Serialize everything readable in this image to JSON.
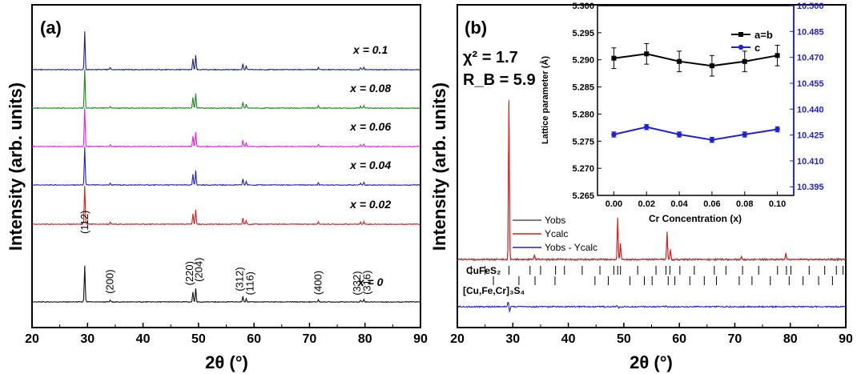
{
  "chart_data": [
    {
      "type": "line",
      "panel_label": "(a)",
      "xlabel": "2θ (°)",
      "ylabel": "Intensity (arb. units)",
      "xlim": [
        20,
        90
      ],
      "xticks": [
        "20",
        "30",
        "40",
        "50",
        "60",
        "70",
        "80",
        "90"
      ],
      "series": [
        {
          "name": "x = 0.1",
          "color": "#1a237e"
        },
        {
          "name": "x = 0.08",
          "color": "#1b8a1b"
        },
        {
          "name": "x = 0.06",
          "color": "#ee1aee"
        },
        {
          "name": "x = 0.04",
          "color": "#1f1fd8"
        },
        {
          "name": "x = 0.02",
          "color": "#e01b1b"
        },
        {
          "name": "x = 0",
          "color": "#111111"
        }
      ],
      "peaks": [
        {
          "hkl": "(112)",
          "x": 29.5,
          "h": 1.0
        },
        {
          "hkl": "(200)",
          "x": 34.1,
          "h": 0.05
        },
        {
          "hkl": "(220)",
          "x": 49.0,
          "h": 0.28
        },
        {
          "hkl": "(204)",
          "x": 49.5,
          "h": 0.38
        },
        {
          "hkl": "(312)",
          "x": 58.0,
          "h": 0.16
        },
        {
          "hkl": "(116)",
          "x": 58.6,
          "h": 0.1
        },
        {
          "hkl": "(400)",
          "x": 71.6,
          "h": 0.06
        },
        {
          "hkl": "(332)",
          "x": 79.2,
          "h": 0.05
        },
        {
          "hkl": "(316)",
          "x": 79.8,
          "h": 0.07
        }
      ]
    },
    {
      "type": "line",
      "panel_label": "(b)",
      "xlabel": "2θ (°)",
      "ylabel": "Intensity (arb. units)",
      "xlim": [
        20,
        90
      ],
      "xticks": [
        "20",
        "30",
        "40",
        "50",
        "60",
        "70",
        "80",
        "90"
      ],
      "stats": {
        "chi2": "χ² = 1.7",
        "rb": "R_B = 5.9"
      },
      "series": [
        {
          "name": "Yobs",
          "color": "#555555"
        },
        {
          "name": "Ycalc",
          "color": "#e01b1b"
        },
        {
          "name": "Yobs - Ycalc",
          "color": "#1f1fd8"
        }
      ],
      "phases": [
        "CuFeS₂",
        "[Cu,Fe,Cr]₃S₄"
      ],
      "peaks": [
        {
          "x": 29.3,
          "h": 1.0
        },
        {
          "x": 33.9,
          "h": 0.03
        },
        {
          "x": 48.9,
          "h": 0.26
        },
        {
          "x": 49.4,
          "h": 0.1
        },
        {
          "x": 57.8,
          "h": 0.17
        },
        {
          "x": 58.4,
          "h": 0.06
        },
        {
          "x": 71.2,
          "h": 0.02
        },
        {
          "x": 79.2,
          "h": 0.04
        }
      ],
      "ticks_phase1": [
        22.5,
        25,
        29.3,
        33.1,
        35,
        37.7,
        39.3,
        42.5,
        45.7,
        48.2,
        48.9,
        49.4,
        52.5,
        55.8,
        57.6,
        58.3,
        60.1,
        62.7,
        66.3,
        68.4,
        71.4,
        74.3,
        77.7,
        79.3,
        80.1,
        83.4,
        86.2,
        88.3,
        89.5
      ],
      "ticks_phase2": [
        26.5,
        31.1,
        34.0,
        37.6,
        44.8,
        47.2,
        51.1,
        53.7,
        55.1,
        58.0,
        59.2,
        61.9,
        64.5,
        66.7,
        70.8,
        73.1,
        76.4,
        79.8,
        82.3,
        85.1,
        87.6
      ]
    },
    {
      "type": "line",
      "xlabel": "Cr Concentration (x)",
      "ylabel": "Lattice parameter (Å)",
      "x": [
        0.0,
        0.02,
        0.04,
        0.06,
        0.08,
        0.1
      ],
      "xticks": [
        "0.00",
        "0.02",
        "0.04",
        "0.06",
        "0.08",
        "0.10"
      ],
      "ylim_left": [
        5.265,
        5.3
      ],
      "yticks_left": [
        "5.265",
        "5.270",
        "5.275",
        "5.280",
        "5.285",
        "5.290",
        "5.295",
        "5.300"
      ],
      "ylim_right": [
        10.39,
        10.5
      ],
      "yticks_right": [
        "10.395",
        "10.410",
        "10.425",
        "10.440",
        "10.455",
        "10.470",
        "10.485",
        "10.500"
      ],
      "legend_position": "top-right",
      "series": [
        {
          "name": "a=b",
          "axis": "left",
          "color": "#000000",
          "values": [
            5.2903,
            5.2911,
            5.2897,
            5.2889,
            5.2897,
            5.2908
          ],
          "err": 0.0019
        },
        {
          "name": "c",
          "axis": "right",
          "color": "#1f1fe0",
          "values": [
            10.4253,
            10.4296,
            10.4253,
            10.4222,
            10.4253,
            10.4283
          ],
          "err": 0.0015
        }
      ]
    }
  ]
}
